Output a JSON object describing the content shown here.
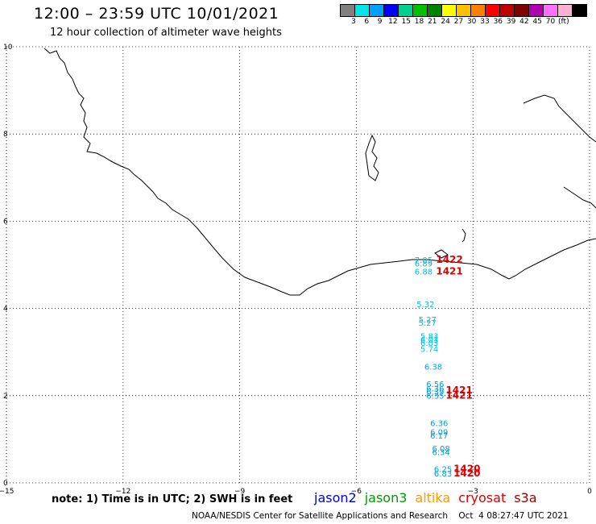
{
  "header": {
    "title": "12:00 – 23:59 UTC 10/01/2021",
    "subtitle": "12 hour collection of altimeter wave heights"
  },
  "colorbar": {
    "colors": [
      "#808080",
      "#00e5e5",
      "#00a0ff",
      "#0000ff",
      "#00d090",
      "#00c000",
      "#008000",
      "#ffff00",
      "#ffc000",
      "#ff8000",
      "#ff0000",
      "#c00000",
      "#800000",
      "#b000b0",
      "#ff70ff",
      "#ffb0d0",
      "#000000"
    ],
    "labels": [
      "3",
      "6",
      "9",
      "12",
      "15",
      "18",
      "21",
      "24",
      "27",
      "30",
      "33",
      "36",
      "39",
      "42",
      "45",
      "70",
      "(ft)"
    ]
  },
  "axes": {
    "x_ticks": [
      "−15",
      "−12",
      "−9",
      "−6",
      "−3",
      "0"
    ],
    "y_ticks": [
      "10",
      "8",
      "6",
      "4",
      "2",
      "0"
    ],
    "xlim": [
      -15,
      0
    ],
    "ylim": [
      0,
      10
    ]
  },
  "observations": [
    {
      "text": "7.05",
      "lon": -4.5,
      "lat": 5.05,
      "color": "#00c0e0"
    },
    {
      "text": "6.89",
      "lon": -4.5,
      "lat": 4.96,
      "color": "#00c0e0"
    },
    {
      "text": "6.88",
      "lon": -4.5,
      "lat": 4.78,
      "color": "#00c0e0"
    },
    {
      "text": "5.32",
      "lon": -4.45,
      "lat": 4.03,
      "color": "#00c0e0"
    },
    {
      "text": "5.27",
      "lon": -4.4,
      "lat": 3.68,
      "color": "#00c0e0"
    },
    {
      "text": "5.27",
      "lon": -4.4,
      "lat": 3.6,
      "color": "#00c0e0"
    },
    {
      "text": "5.83",
      "lon": -4.35,
      "lat": 3.3,
      "color": "#00c0e0"
    },
    {
      "text": "6.03",
      "lon": -4.35,
      "lat": 3.22,
      "color": "#00c0e0"
    },
    {
      "text": "6.03",
      "lon": -4.35,
      "lat": 3.14,
      "color": "#00c0e0"
    },
    {
      "text": "5.74",
      "lon": -4.35,
      "lat": 3.0,
      "color": "#00c0e0"
    },
    {
      "text": "6.38",
      "lon": -4.25,
      "lat": 2.6,
      "color": "#00a0e0"
    },
    {
      "text": "6.56",
      "lon": -4.2,
      "lat": 2.2,
      "color": "#00a0e0"
    },
    {
      "text": "6.36",
      "lon": -4.2,
      "lat": 2.1,
      "color": "#00a0e0"
    },
    {
      "text": "6.39",
      "lon": -4.2,
      "lat": 2.02,
      "color": "#00a0e0"
    },
    {
      "text": "6.35",
      "lon": -4.2,
      "lat": 1.93,
      "color": "#00a0e0"
    },
    {
      "text": "6.36",
      "lon": -4.1,
      "lat": 1.3,
      "color": "#00a0e0"
    },
    {
      "text": "6.09",
      "lon": -4.1,
      "lat": 1.1,
      "color": "#00a0e0"
    },
    {
      "text": "6.17",
      "lon": -4.1,
      "lat": 1.02,
      "color": "#00a0e0"
    },
    {
      "text": "6.08",
      "lon": -4.05,
      "lat": 0.72,
      "color": "#00a0e0"
    },
    {
      "text": "6.34",
      "lon": -4.05,
      "lat": 0.64,
      "color": "#00a0e0"
    },
    {
      "text": "6.25",
      "lon": -4.0,
      "lat": 0.25,
      "color": "#00a0e0"
    },
    {
      "text": "6.83",
      "lon": -4.0,
      "lat": 0.15,
      "color": "#00a0e0"
    }
  ],
  "times": [
    {
      "text": "1422",
      "lon": -3.95,
      "lat": 5.05,
      "color": "#e00000"
    },
    {
      "text": "1421",
      "lon": -3.95,
      "lat": 4.78,
      "color": "#e00000"
    },
    {
      "text": "1421",
      "lon": -3.7,
      "lat": 2.05,
      "color": "#e00000"
    },
    {
      "text": "1421",
      "lon": -3.7,
      "lat": 1.93,
      "color": "#e00000"
    },
    {
      "text": "1420",
      "lon": -3.5,
      "lat": 0.25,
      "color": "#e00000"
    },
    {
      "text": "1420",
      "lon": -3.5,
      "lat": 0.15,
      "color": "#e00000"
    }
  ],
  "footer": {
    "note": "note:  1) Time is in UTC;  2) SWH is in feet",
    "legend": [
      {
        "name": "jason2",
        "color": "#0000dd"
      },
      {
        "name": "jason3",
        "color": "#009900"
      },
      {
        "name": "altika",
        "color": "#ff9900"
      },
      {
        "name": "cryosat",
        "color": "#dd0000"
      },
      {
        "name": "s3a",
        "color": "#990000"
      }
    ],
    "credit": "NOAA/NESDIS Center for Satellite Applications and Research    Oct  4 08:27:47 UTC 2021"
  }
}
